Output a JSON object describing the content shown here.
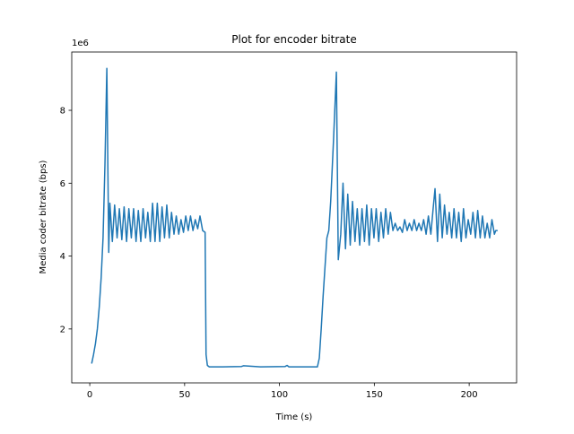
{
  "chart_data": {
    "type": "line",
    "title": "Plot for encoder bitrate",
    "x_label": "Time (s)",
    "y_label": "Media coder bitrate (bps)",
    "y_offset_label": "1e6",
    "color": "#1f77b4",
    "xlim": [
      -9.5,
      225
    ],
    "ylim": [
      520000,
      9600000
    ],
    "xticks": [
      0,
      50,
      100,
      150,
      200
    ],
    "yticks": [
      {
        "value": 2000000,
        "label": "2"
      },
      {
        "value": 4000000,
        "label": "4"
      },
      {
        "value": 6000000,
        "label": "6"
      },
      {
        "value": 8000000,
        "label": "8"
      }
    ],
    "x": [
      1,
      2,
      3,
      4,
      5,
      6,
      7,
      8,
      9,
      10,
      10.6,
      11.9,
      13.1,
      14.4,
      15.6,
      16.9,
      18.1,
      19.4,
      20.6,
      21.9,
      23.1,
      24.4,
      25.6,
      26.9,
      28.1,
      29.4,
      30.6,
      31.9,
      33.1,
      34.4,
      35.6,
      36.9,
      38.1,
      39.4,
      40.6,
      41.9,
      43.1,
      44.4,
      45.6,
      46.9,
      48.1,
      49.4,
      50.6,
      51.9,
      53.1,
      54.4,
      55.6,
      56.9,
      58.1,
      59.5,
      60.8,
      61.3,
      62,
      63,
      70,
      80,
      81,
      90,
      103,
      104,
      105,
      115,
      120,
      121,
      122,
      123,
      124,
      125,
      126,
      127,
      128.5,
      130,
      131,
      132.3,
      133.5,
      134.8,
      136,
      137.3,
      138.5,
      139.8,
      141,
      142.3,
      143.5,
      144.8,
      146,
      147.3,
      148.5,
      149.8,
      151,
      152.3,
      153.5,
      154.8,
      156,
      157.3,
      158.5,
      159.8,
      161,
      162.3,
      163.5,
      164.8,
      166,
      167.3,
      168.5,
      169.8,
      171,
      172.3,
      173.5,
      174.8,
      176,
      177.3,
      178.5,
      179.8,
      181,
      182,
      183.3,
      184.5,
      185.8,
      187,
      188.3,
      189.5,
      190.8,
      192,
      193.3,
      194.5,
      195.8,
      197,
      198.3,
      199.5,
      200.8,
      202,
      203.3,
      204.5,
      205.8,
      207,
      208.3,
      209.5,
      210.8,
      212,
      213.3,
      214,
      215
    ],
    "values": [
      1050000,
      1300000,
      1600000,
      2000000,
      2600000,
      3400000,
      4500000,
      6500000,
      9150000,
      4100000,
      5450000,
      4400000,
      5400000,
      4500000,
      5300000,
      4450000,
      5350000,
      4400000,
      5300000,
      4500000,
      5300000,
      4400000,
      5250000,
      4400000,
      5300000,
      4500000,
      5200000,
      4400000,
      5450000,
      4400000,
      5450000,
      4400000,
      5350000,
      4500000,
      5400000,
      4500000,
      5200000,
      4600000,
      5100000,
      4600000,
      5000000,
      4650000,
      5100000,
      4700000,
      5100000,
      4700000,
      5000000,
      4750000,
      5100000,
      4700000,
      4650000,
      1300000,
      1000000,
      960000,
      960000,
      970000,
      990000,
      960000,
      970000,
      1000000,
      960000,
      960000,
      960000,
      1200000,
      2000000,
      2900000,
      3700000,
      4500000,
      4700000,
      5500000,
      7200000,
      9050000,
      3900000,
      4600000,
      6000000,
      4200000,
      5700000,
      4300000,
      5500000,
      4400000,
      5300000,
      4300000,
      5300000,
      4400000,
      5400000,
      4300000,
      5300000,
      4500000,
      5300000,
      4400000,
      5200000,
      4500000,
      5300000,
      4600000,
      5200000,
      4700000,
      4900000,
      4700000,
      4800000,
      4650000,
      5000000,
      4700000,
      4900000,
      4700000,
      5000000,
      4700000,
      4900000,
      4700000,
      5000000,
      4600000,
      5100000,
      4600000,
      5300000,
      5850000,
      4400000,
      5700000,
      4500000,
      5400000,
      4600000,
      5200000,
      4500000,
      5300000,
      4500000,
      5200000,
      4400000,
      5300000,
      4500000,
      5000000,
      4600000,
      5200000,
      4500000,
      5250000,
      4500000,
      5100000,
      4500000,
      4900000,
      4500000,
      5000000,
      4600000,
      4700000,
      4700000
    ]
  }
}
